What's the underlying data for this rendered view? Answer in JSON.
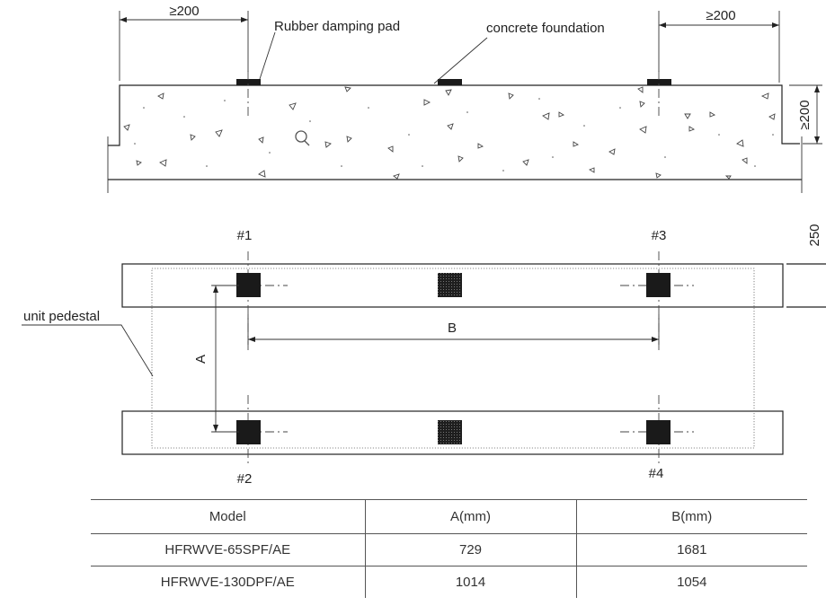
{
  "section_view": {
    "clearance_left": "≥200",
    "clearance_right": "≥200",
    "clearance_height": "≥200",
    "label_pad": "Rubber damping pad",
    "label_foundation": "concrete foundation"
  },
  "plan_view": {
    "label_pedestal": "unit pedestal",
    "dim_a": "A",
    "dim_b": "B",
    "side_dim": "250",
    "bolts": [
      "#1",
      "#2",
      "#3",
      "#4"
    ]
  },
  "table": {
    "headers": [
      "Model",
      "A(mm)",
      "B(mm)"
    ],
    "rows": [
      [
        "HFRWVE-65SPF/AE",
        "729",
        "1681"
      ],
      [
        "HFRWVE-130DPF/AE",
        "1014",
        "1054"
      ]
    ]
  }
}
